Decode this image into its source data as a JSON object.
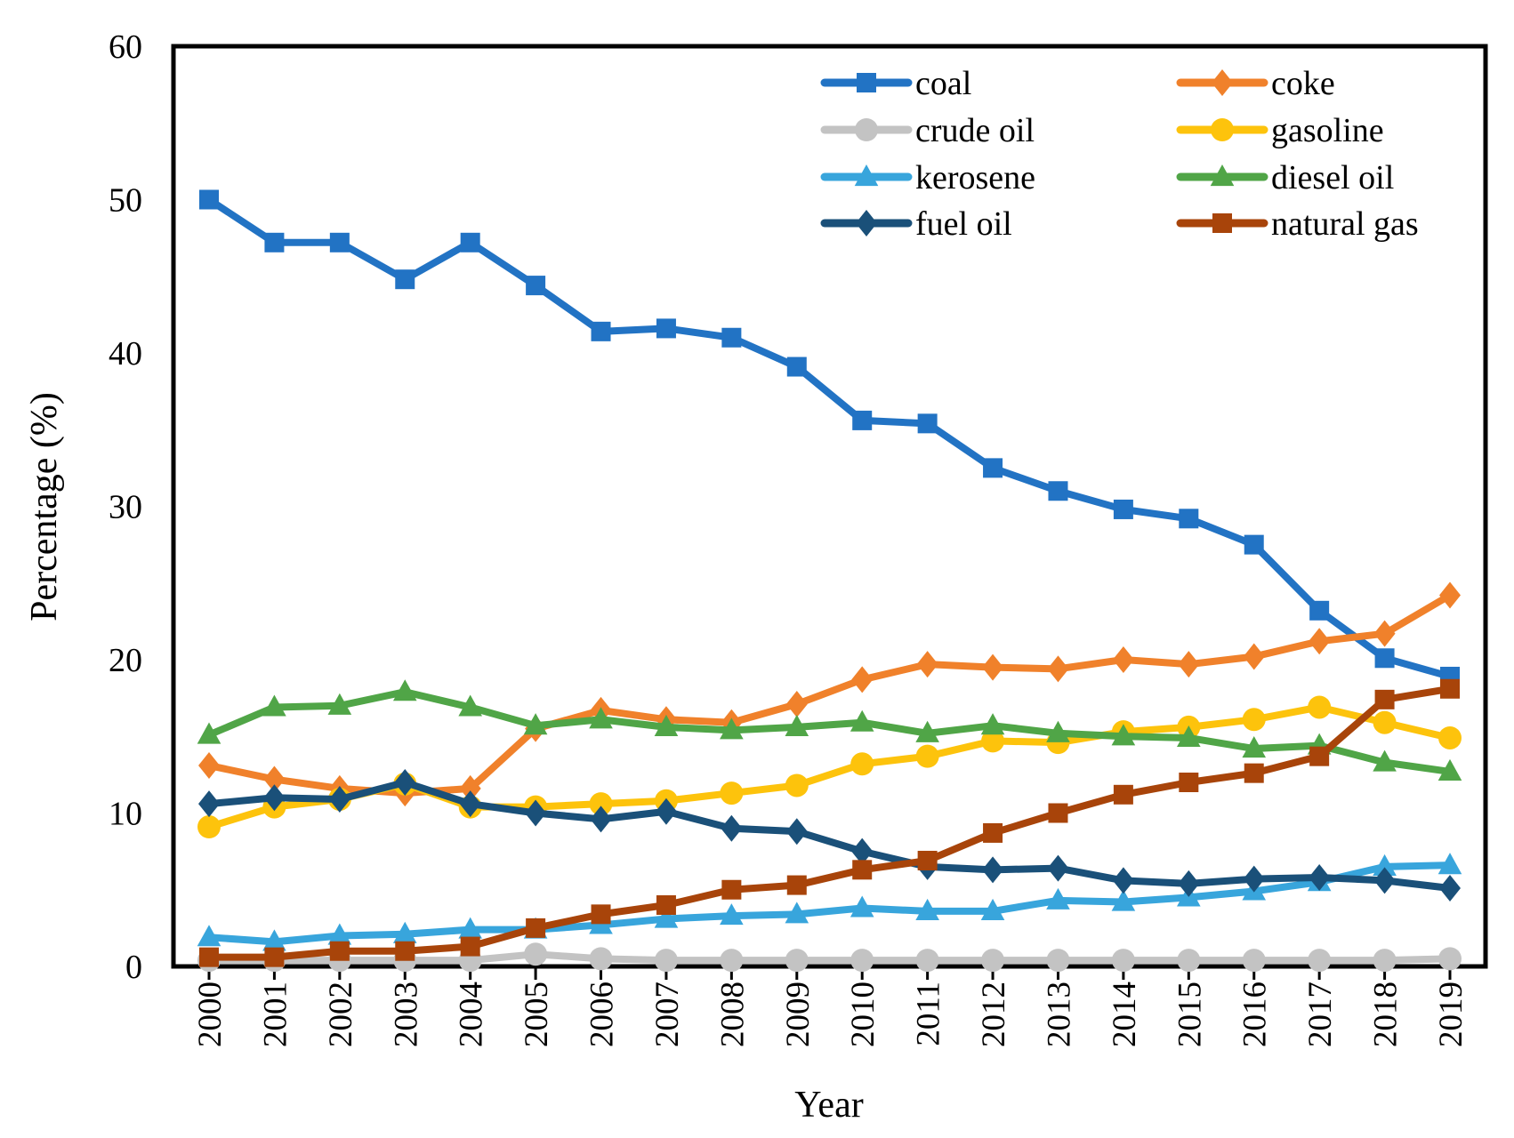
{
  "figure": {
    "title": "",
    "background": "#ffffff",
    "axis_color": "#000000"
  },
  "chart_data": {
    "type": "line",
    "title": "",
    "xlabel": "Year",
    "ylabel": "Percentage (%)",
    "x": [
      2000,
      2001,
      2002,
      2003,
      2004,
      2005,
      2006,
      2007,
      2008,
      2009,
      2010,
      2011,
      2012,
      2013,
      2014,
      2015,
      2016,
      2017,
      2018,
      2019
    ],
    "ylim": [
      0,
      60
    ],
    "y_ticks": [
      0,
      10,
      20,
      30,
      40,
      50,
      60
    ],
    "grid": false,
    "legend_position": "top-center-two-columns",
    "series": [
      {
        "name": "coal",
        "color": "#2273C4",
        "marker": "square",
        "values": [
          50.0,
          47.2,
          47.2,
          44.8,
          47.2,
          44.4,
          41.4,
          41.6,
          41.0,
          39.1,
          35.6,
          35.4,
          32.5,
          31.0,
          29.8,
          29.2,
          27.5,
          23.2,
          20.1,
          18.9
        ]
      },
      {
        "name": "coke",
        "color": "#F0812B",
        "marker": "diamond",
        "values": [
          13.1,
          12.2,
          11.6,
          11.3,
          11.6,
          15.5,
          16.7,
          16.1,
          15.9,
          17.1,
          18.7,
          19.7,
          19.5,
          19.4,
          20.0,
          19.7,
          20.2,
          21.2,
          21.7,
          24.2
        ]
      },
      {
        "name": "crude oil",
        "color": "#C3C3C3",
        "marker": "circle",
        "values": [
          0.4,
          0.4,
          0.4,
          0.4,
          0.4,
          0.8,
          0.5,
          0.4,
          0.4,
          0.4,
          0.4,
          0.4,
          0.4,
          0.4,
          0.4,
          0.4,
          0.4,
          0.4,
          0.4,
          0.5
        ]
      },
      {
        "name": "gasoline",
        "color": "#FDC30C",
        "marker": "circle",
        "values": [
          9.1,
          10.4,
          10.9,
          11.9,
          10.4,
          10.4,
          10.6,
          10.8,
          11.3,
          11.8,
          13.2,
          13.7,
          14.7,
          14.6,
          15.3,
          15.6,
          16.1,
          16.9,
          15.9,
          14.9
        ]
      },
      {
        "name": "kerosene",
        "color": "#38A5DC",
        "marker": "triangle",
        "values": [
          1.9,
          1.6,
          2.0,
          2.1,
          2.4,
          2.4,
          2.7,
          3.1,
          3.3,
          3.4,
          3.8,
          3.6,
          3.6,
          4.3,
          4.2,
          4.5,
          4.9,
          5.5,
          6.5,
          6.6
        ]
      },
      {
        "name": "diesel oil",
        "color": "#50A547",
        "marker": "triangle",
        "values": [
          15.1,
          16.9,
          17.0,
          17.9,
          16.9,
          15.7,
          16.1,
          15.6,
          15.4,
          15.6,
          15.9,
          15.2,
          15.7,
          15.2,
          15.0,
          14.9,
          14.2,
          14.4,
          13.3,
          12.7
        ]
      },
      {
        "name": "fuel oil",
        "color": "#1A5079",
        "marker": "diamond",
        "values": [
          10.6,
          11.0,
          10.9,
          12.0,
          10.6,
          10.0,
          9.6,
          10.1,
          9.0,
          8.8,
          7.5,
          6.5,
          6.3,
          6.4,
          5.6,
          5.4,
          5.7,
          5.8,
          5.6,
          5.1
        ]
      },
      {
        "name": "natural gas",
        "color": "#A8440A",
        "marker": "square",
        "values": [
          0.6,
          0.6,
          1.0,
          1.0,
          1.3,
          2.5,
          3.4,
          4.0,
          5.0,
          5.3,
          6.3,
          6.9,
          8.7,
          10.0,
          11.2,
          12.0,
          12.6,
          13.7,
          17.4,
          18.1
        ]
      }
    ]
  }
}
